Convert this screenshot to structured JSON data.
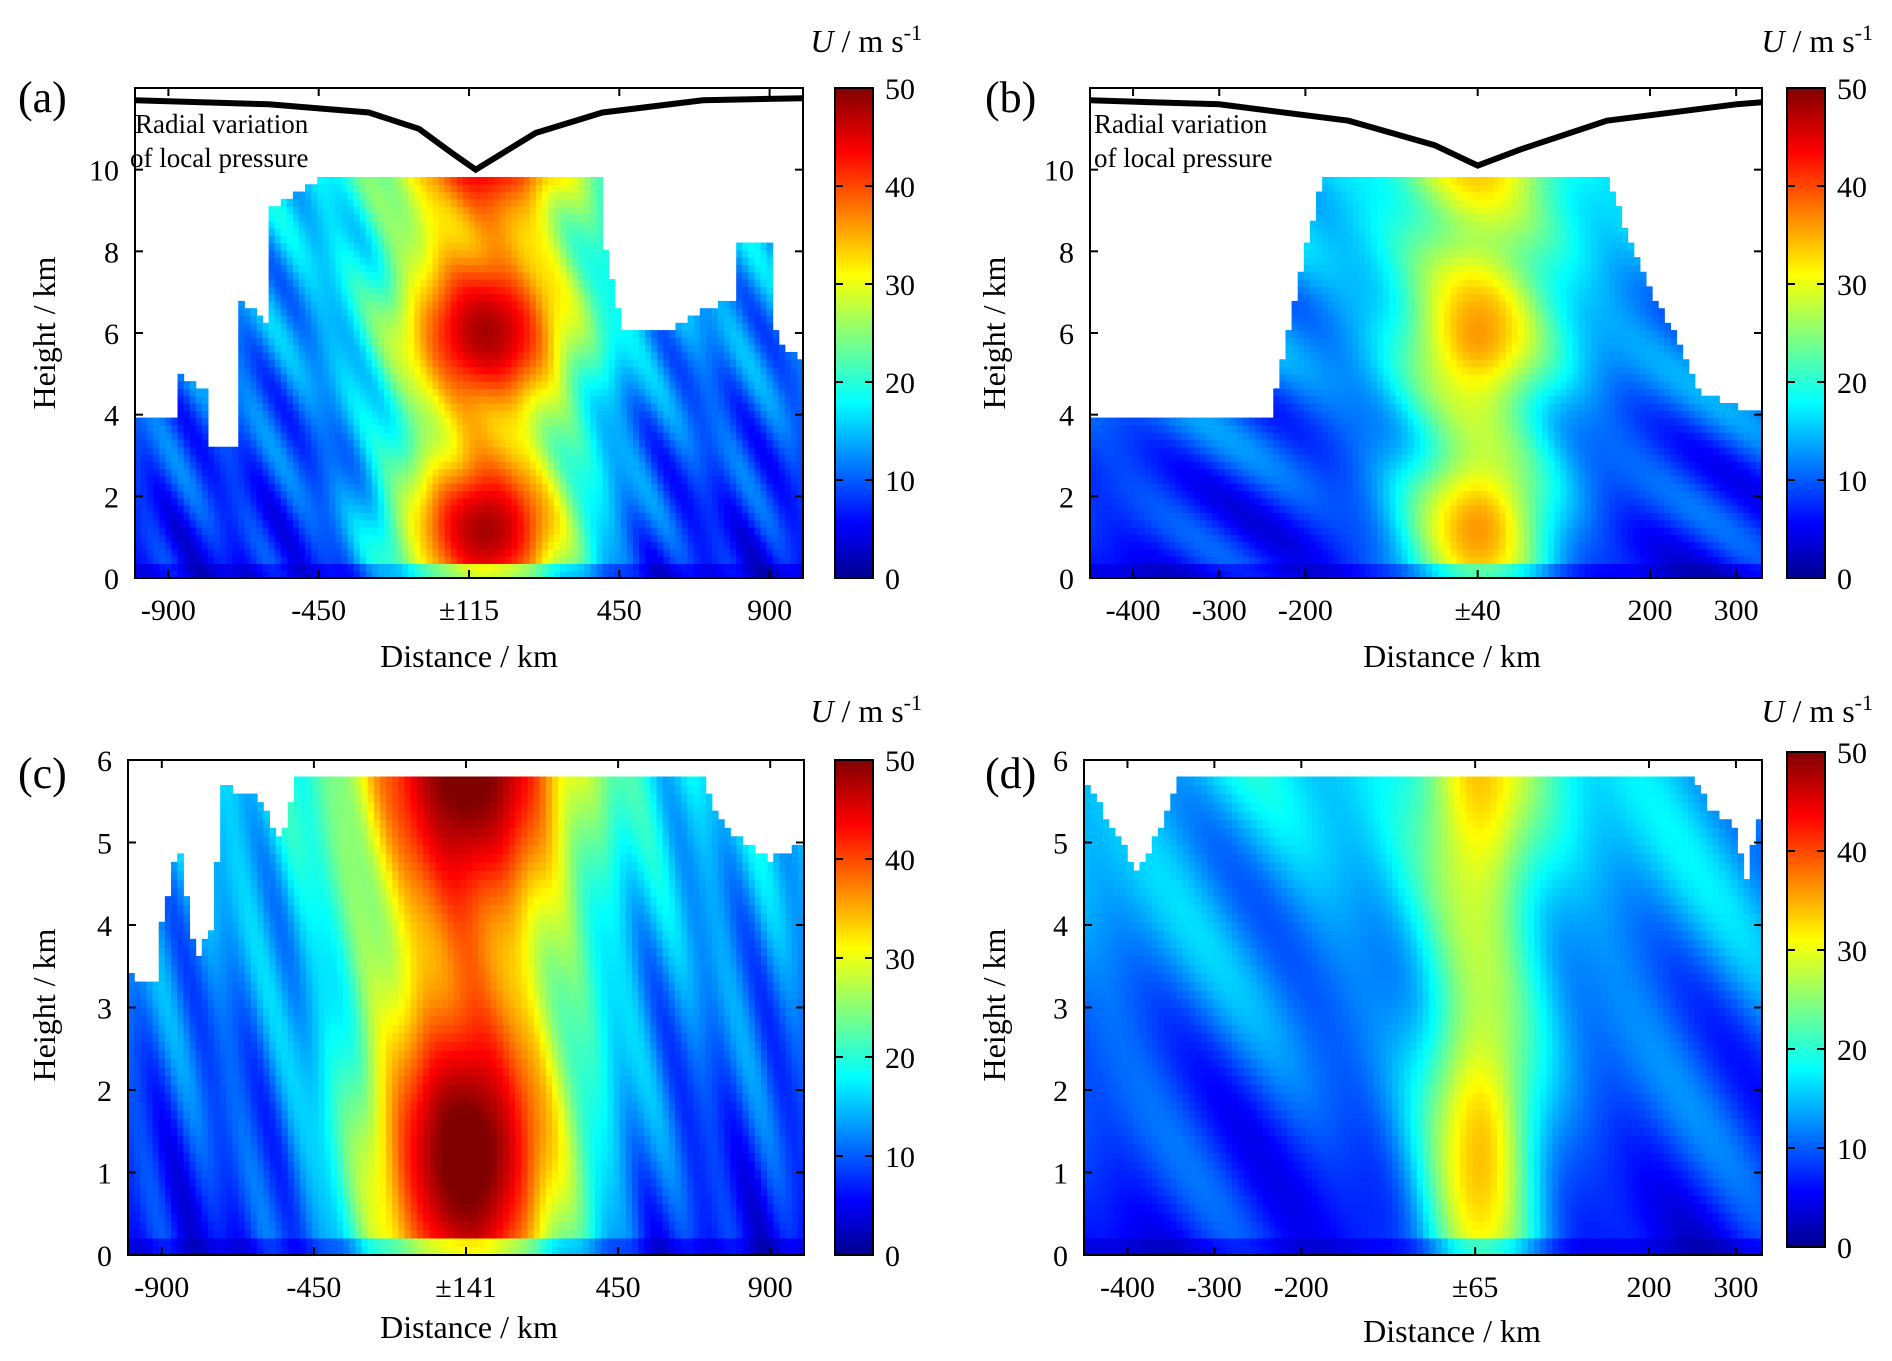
{
  "chart_data": [
    {
      "panel_label": "(a)",
      "type": "heatmap",
      "xlabel": "Distance / km",
      "ylabel": "Height / km",
      "xlim": [
        -1000,
        1000
      ],
      "ylim": [
        0,
        12
      ],
      "x_ticks": [
        -900,
        -450,
        0,
        450,
        900
      ],
      "x_tick_labels": [
        "-900",
        "-450",
        "±115",
        "450",
        "900"
      ],
      "y_ticks": [
        0,
        2,
        4,
        6,
        8,
        10
      ],
      "y_tick_labels": [
        "0",
        "2",
        "4",
        "6",
        "8",
        "10"
      ],
      "colorbar": {
        "label_italic": "U",
        "label_rest": " / m s",
        "label_sup": "-1",
        "min": 0,
        "max": 50,
        "ticks": [
          "0",
          "10",
          "20",
          "30",
          "40",
          "50"
        ]
      },
      "annotation": [
        "Radial variation",
        "of local pressure"
      ],
      "core": {
        "center": 50,
        "width_km": 290,
        "peak": 48,
        "data_top": 10
      },
      "envelope": [
        [
          -1000,
          4.0
        ],
        [
          -870,
          4.0
        ],
        [
          -870,
          5.0
        ],
        [
          -780,
          4.5
        ],
        [
          -780,
          3.3
        ],
        [
          -700,
          3.3
        ],
        [
          -700,
          6.9
        ],
        [
          -600,
          6.2
        ],
        [
          -600,
          9.0
        ],
        [
          -450,
          9.8
        ],
        [
          400,
          9.8
        ],
        [
          400,
          8.5
        ],
        [
          460,
          6.0
        ],
        [
          600,
          6.0
        ],
        [
          700,
          6.6
        ],
        [
          800,
          6.8
        ],
        [
          800,
          8.3
        ],
        [
          900,
          8.3
        ],
        [
          920,
          5.8
        ],
        [
          1000,
          5.3
        ]
      ],
      "pressure_curve": [
        [
          -1000,
          11.7
        ],
        [
          -600,
          11.6
        ],
        [
          -300,
          11.4
        ],
        [
          -150,
          11.0
        ],
        [
          -50,
          10.4
        ],
        [
          20,
          10.0
        ],
        [
          80,
          10.3
        ],
        [
          200,
          10.9
        ],
        [
          400,
          11.4
        ],
        [
          700,
          11.7
        ],
        [
          1000,
          11.75
        ]
      ]
    },
    {
      "panel_label": "(b)",
      "type": "heatmap",
      "xlabel": "Distance / km",
      "ylabel": "Height / km",
      "xlim": [
        -450,
        330
      ],
      "ylim": [
        0,
        12
      ],
      "x_ticks": [
        -400,
        -300,
        -200,
        0,
        200,
        300
      ],
      "x_tick_labels": [
        "-400",
        "-300",
        "-200",
        "±40",
        "200",
        "300"
      ],
      "y_ticks": [
        0,
        2,
        4,
        6,
        8,
        10
      ],
      "y_tick_labels": [
        "0",
        "2",
        "4",
        "6",
        "8",
        "10"
      ],
      "colorbar": {
        "label_italic": "U",
        "label_rest": " / m s",
        "label_sup": "-1",
        "min": 0,
        "max": 50,
        "ticks": [
          "0",
          "10",
          "20",
          "30",
          "40",
          "50"
        ]
      },
      "annotation": [
        "Radial variation",
        "of local pressure"
      ],
      "core": {
        "center": 0,
        "width_km": 90,
        "peak": 36,
        "data_top": 10
      },
      "envelope": [
        [
          -450,
          4.0
        ],
        [
          -240,
          4.0
        ],
        [
          -200,
          8.0
        ],
        [
          -180,
          9.8
        ],
        [
          150,
          9.8
        ],
        [
          190,
          7.5
        ],
        [
          240,
          5.5
        ],
        [
          260,
          4.5
        ],
        [
          330,
          4.0
        ]
      ],
      "pressure_curve": [
        [
          -450,
          11.7
        ],
        [
          -300,
          11.6
        ],
        [
          -150,
          11.2
        ],
        [
          -50,
          10.6
        ],
        [
          0,
          10.1
        ],
        [
          50,
          10.5
        ],
        [
          150,
          11.2
        ],
        [
          300,
          11.6
        ],
        [
          330,
          11.65
        ]
      ]
    },
    {
      "panel_label": "(c)",
      "type": "heatmap",
      "xlabel": "Distance / km",
      "ylabel": "Height / km",
      "xlim": [
        -1000,
        1000
      ],
      "ylim": [
        0,
        6
      ],
      "x_ticks": [
        -900,
        -450,
        0,
        450,
        900
      ],
      "x_tick_labels": [
        "-900",
        "-450",
        "±141",
        "450",
        "900"
      ],
      "y_ticks": [
        0,
        1,
        2,
        3,
        4,
        5,
        6
      ],
      "y_tick_labels": [
        "0",
        "1",
        "2",
        "3",
        "4",
        "5",
        "6"
      ],
      "colorbar": {
        "label_italic": "U",
        "label_rest": " / m s",
        "label_sup": "-1",
        "min": 0,
        "max": 50,
        "ticks": [
          "0",
          "10",
          "20",
          "30",
          "40",
          "50"
        ]
      },
      "core": {
        "center": 0,
        "width_km": 330,
        "peak": 52,
        "data_top": 5.8
      },
      "envelope": [
        [
          -1000,
          3.4
        ],
        [
          -920,
          3.3
        ],
        [
          -900,
          4.0
        ],
        [
          -850,
          5.0
        ],
        [
          -800,
          3.6
        ],
        [
          -750,
          4.0
        ],
        [
          -720,
          5.7
        ],
        [
          -600,
          5.5
        ],
        [
          -550,
          5.0
        ],
        [
          -500,
          5.8
        ],
        [
          700,
          5.8
        ],
        [
          750,
          5.3
        ],
        [
          820,
          5.0
        ],
        [
          900,
          4.8
        ],
        [
          1000,
          5.0
        ]
      ],
      "pressure_curve": []
    },
    {
      "panel_label": "(d)",
      "type": "heatmap",
      "xlabel": "Distance / km",
      "ylabel": "Height / km",
      "xlim": [
        -450,
        330
      ],
      "ylim": [
        0,
        6
      ],
      "x_ticks": [
        -400,
        -300,
        -200,
        0,
        200,
        300
      ],
      "x_tick_labels": [
        "-400",
        "-300",
        "-200",
        "±65",
        "200",
        "300"
      ],
      "y_ticks": [
        0,
        1,
        2,
        3,
        4,
        5,
        6
      ],
      "y_tick_labels": [
        "0",
        "1",
        "2",
        "3",
        "4",
        "5",
        "6"
      ],
      "colorbar": {
        "label_italic": "U",
        "label_rest": " / m s",
        "label_sup": "-1",
        "min": 0,
        "max": 50,
        "ticks": [
          "0",
          "10",
          "20",
          "30",
          "40",
          "50"
        ]
      },
      "core": {
        "center": 5,
        "width_km": 70,
        "peak": 34,
        "data_top": 5.8
      },
      "envelope": [
        [
          -450,
          5.8
        ],
        [
          -420,
          5.2
        ],
        [
          -390,
          4.7
        ],
        [
          -370,
          5.0
        ],
        [
          -340,
          5.8
        ],
        [
          250,
          5.8
        ],
        [
          270,
          5.4
        ],
        [
          300,
          5.2
        ],
        [
          310,
          4.5
        ],
        [
          330,
          5.4
        ]
      ],
      "pressure_curve": []
    }
  ]
}
